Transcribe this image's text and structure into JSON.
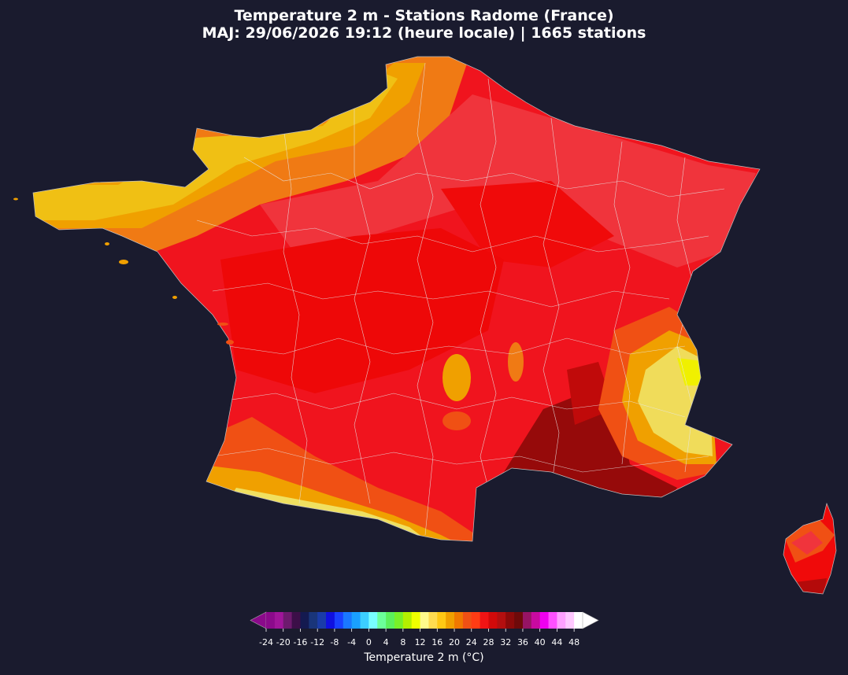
{
  "title": {
    "line1": "Temperature 2 m - Stations Radome (France)",
    "line2": "MAJ: 29/06/2026 19:12 (heure locale)  |  1665 stations"
  },
  "colorbar": {
    "label": "Temperature 2 m (°C)",
    "ticks": [
      "-24",
      "-20",
      "-16",
      "-12",
      "-8",
      "-4",
      "0",
      "4",
      "8",
      "12",
      "16",
      "20",
      "24",
      "28",
      "32",
      "36",
      "40",
      "44",
      "48"
    ],
    "colors": [
      "#8b0a8b",
      "#a0159a",
      "#6e1a6e",
      "#3c0f48",
      "#141a50",
      "#19357a",
      "#1a3ca8",
      "#1010e0",
      "#1a40ff",
      "#1a78ff",
      "#1aa0ff",
      "#3ccfff",
      "#78ffff",
      "#6cff9a",
      "#5cf05c",
      "#78f028",
      "#b4f000",
      "#f0ff00",
      "#fffa8c",
      "#ffdc50",
      "#ffc814",
      "#f0a000",
      "#f07800",
      "#f05014",
      "#ff3c14",
      "#f01414",
      "#d20a0a",
      "#b40f0f",
      "#8c0a0a",
      "#6e0a0a",
      "#961464",
      "#c80aa0",
      "#f000f0",
      "#ff50ff",
      "#ffa0ff",
      "#ffc8ff",
      "#ffffff"
    ]
  },
  "colors": {
    "background": "#1a1b2e",
    "border": "#d8d8d8"
  }
}
